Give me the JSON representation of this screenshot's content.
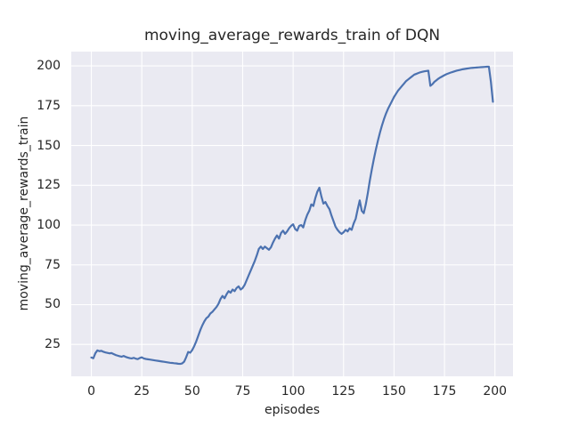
{
  "chart_data": {
    "type": "line",
    "title": "moving_average_rewards_train of DQN",
    "xlabel": "episodes",
    "ylabel": "moving_average_rewards_train",
    "grid": true,
    "legend": "none",
    "xticks": [
      0,
      25,
      50,
      75,
      100,
      125,
      150,
      175,
      200
    ],
    "yticks": [
      25,
      50,
      75,
      100,
      125,
      150,
      175,
      200
    ],
    "xlim": [
      -9.95,
      208.95
    ],
    "ylim": [
      5,
      209
    ],
    "style": {
      "line_color": "#4c72b0",
      "axes_bg": "#eaeaf2",
      "grid_color": "#ffffff",
      "text_color": "#262626",
      "figure_bg": "#ffffff"
    },
    "series": [
      {
        "name": "moving_average_rewards_train",
        "x_start": 0,
        "x_step": 1,
        "values": [
          16.8,
          16.3,
          19.5,
          21.3,
          20.8,
          21.0,
          20.4,
          20.0,
          19.7,
          19.4,
          19.6,
          19.0,
          18.4,
          18.0,
          17.6,
          17.3,
          17.8,
          17.2,
          16.8,
          16.4,
          16.2,
          16.6,
          16.1,
          15.8,
          16.5,
          16.9,
          16.2,
          15.9,
          15.7,
          15.5,
          15.3,
          15.1,
          14.9,
          14.7,
          14.5,
          14.3,
          14.1,
          13.9,
          13.7,
          13.5,
          13.4,
          13.2,
          13.1,
          12.9,
          12.8,
          13.1,
          14.2,
          17.0,
          20.3,
          19.8,
          21.5,
          24.0,
          27.0,
          30.5,
          34.0,
          37.0,
          39.5,
          41.5,
          42.5,
          44.5,
          45.5,
          47.0,
          48.5,
          50.5,
          53.5,
          55.5,
          54.0,
          56.5,
          58.5,
          57.5,
          59.5,
          58.5,
          60.5,
          61.5,
          59.5,
          60.5,
          62.5,
          65.5,
          68.5,
          71.5,
          74.5,
          77.5,
          81.0,
          85.0,
          86.5,
          85.0,
          86.5,
          85.5,
          84.5,
          86.0,
          89.0,
          91.5,
          93.5,
          91.5,
          95.0,
          96.5,
          94.5,
          96.0,
          98.0,
          99.5,
          100.5,
          97.5,
          96.5,
          99.5,
          100.0,
          98.5,
          103.0,
          106.5,
          109.0,
          113.0,
          112.0,
          117.0,
          121.0,
          123.5,
          118.0,
          113.5,
          114.5,
          112.0,
          110.0,
          106.0,
          102.5,
          99.0,
          97.0,
          95.5,
          94.5,
          95.5,
          97.0,
          96.0,
          98.0,
          97.0,
          101.0,
          104.0,
          110.0,
          115.5,
          109.0,
          107.5,
          113.0,
          120.0,
          128.0,
          135.0,
          141.5,
          147.5,
          153.0,
          158.0,
          162.5,
          166.5,
          170.0,
          173.0,
          175.5,
          178.0,
          180.5,
          182.5,
          184.5,
          186.0,
          187.5,
          189.0,
          190.5,
          191.5,
          192.5,
          193.5,
          194.5,
          195.0,
          195.5,
          196.0,
          196.3,
          196.6,
          196.8,
          197.0,
          187.5,
          188.5,
          190.0,
          191.0,
          192.0,
          192.8,
          193.5,
          194.2,
          194.8,
          195.3,
          195.8,
          196.2,
          196.6,
          197.0,
          197.3,
          197.6,
          197.9,
          198.1,
          198.3,
          198.5,
          198.7,
          198.8,
          198.9,
          199.0,
          199.1,
          199.2,
          199.3,
          199.4,
          199.5,
          199.5,
          190.0,
          177.5
        ]
      }
    ]
  }
}
